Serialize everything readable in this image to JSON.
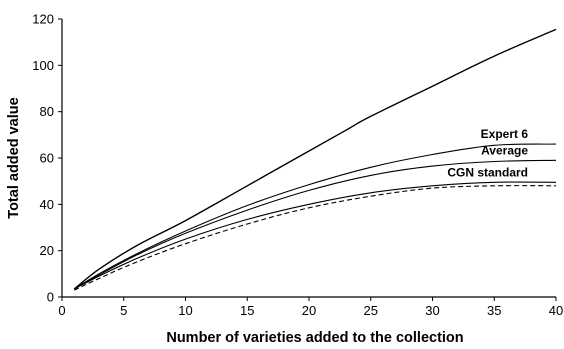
{
  "chart_data": {
    "type": "line",
    "title": "",
    "xlabel": "Number of varieties added to the collection",
    "ylabel": "Total added value",
    "xlim": [
      0,
      40
    ],
    "ylim": [
      0,
      120
    ],
    "x_ticks": [
      0,
      5,
      10,
      15,
      20,
      25,
      30,
      35,
      40
    ],
    "y_ticks": [
      0,
      20,
      40,
      60,
      80,
      100,
      120
    ],
    "grid": false,
    "legend": "none",
    "series": [
      {
        "key": "top",
        "name": "",
        "style": "solid",
        "x": [
          1,
          3,
          6,
          10,
          15,
          20,
          23,
          25,
          30,
          35,
          40
        ],
        "y": [
          3.5,
          12,
          22,
          33,
          48,
          63,
          72,
          78,
          91,
          104,
          115.5
        ]
      },
      {
        "key": "expert6",
        "name": "Expert 6",
        "style": "solid",
        "x": [
          1,
          3,
          6,
          10,
          15,
          20,
          25,
          30,
          35,
          40
        ],
        "y": [
          3.5,
          10,
          18.5,
          28.5,
          39.5,
          48.5,
          56,
          61.5,
          65.5,
          66
        ]
      },
      {
        "key": "average",
        "name": "Average",
        "style": "solid",
        "x": [
          1,
          3,
          6,
          10,
          15,
          20,
          25,
          30,
          35,
          40
        ],
        "y": [
          3.5,
          9.5,
          18,
          27.5,
          37.5,
          46,
          52.5,
          56.5,
          58.5,
          59
        ]
      },
      {
        "key": "cgn",
        "name": "CGN standard",
        "style": "solid",
        "x": [
          1,
          3,
          6,
          10,
          15,
          20,
          25,
          30,
          35,
          40
        ],
        "y": [
          3.5,
          9,
          16.5,
          25,
          33.5,
          40,
          45,
          48,
          49.5,
          49.5
        ]
      },
      {
        "key": "dashed",
        "name": "",
        "style": "dashed",
        "x": [
          1,
          3,
          6,
          10,
          15,
          20,
          25,
          30,
          35,
          40
        ],
        "y": [
          3,
          8,
          15,
          23,
          31.5,
          38.5,
          43.5,
          47,
          48,
          48
        ]
      }
    ],
    "annotations": [
      {
        "text": "Expert 6",
        "series": "expert6"
      },
      {
        "text": "Average",
        "series": "average"
      },
      {
        "text": "CGN standard",
        "series": "cgn"
      }
    ]
  }
}
